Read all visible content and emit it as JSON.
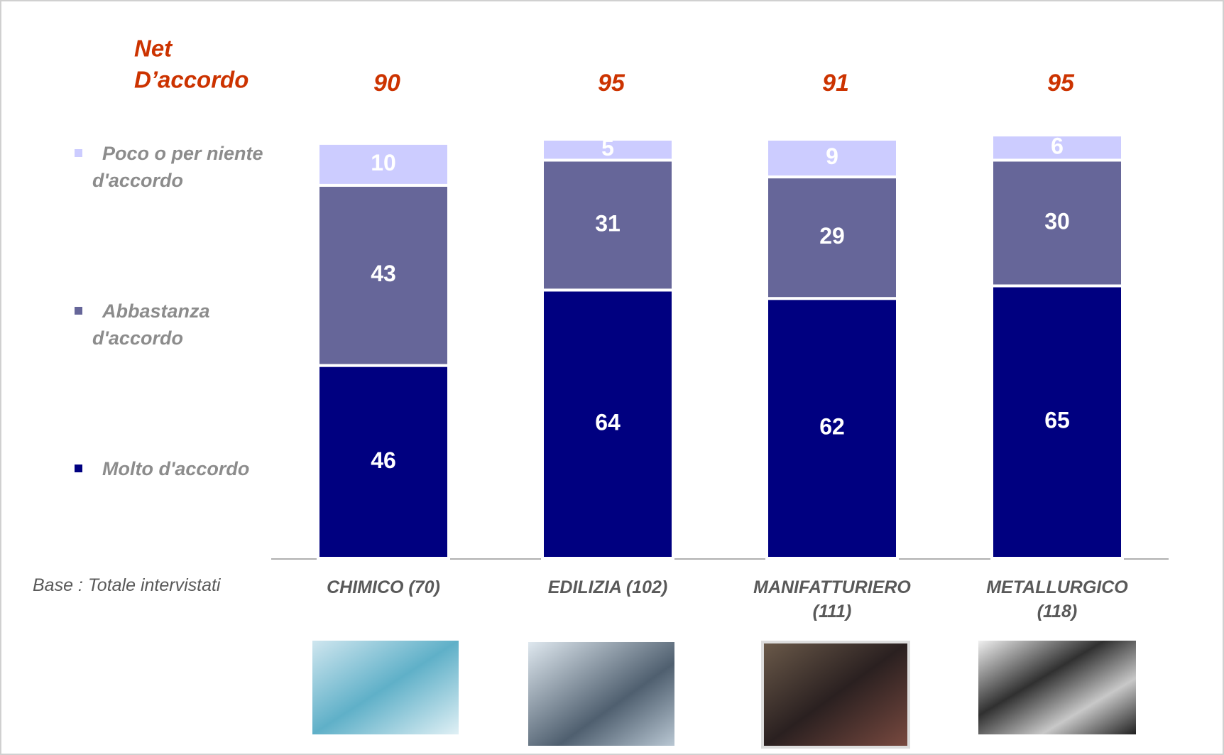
{
  "chart_data": {
    "type": "stacked-bar",
    "net_label": [
      "Net",
      "D’accordo"
    ],
    "net_values": [
      90,
      95,
      91,
      95
    ],
    "base_note": "Base : Totale intervistati",
    "categories": [
      "CHIMICO (70)",
      "EDILIZIA (102)",
      "MANIFATTURIERO (111)",
      "METALLURGICO (118)"
    ],
    "series": [
      {
        "name": "Molto d'accordo",
        "color": "#000080",
        "values": [
          46,
          64,
          62,
          65
        ]
      },
      {
        "name": "Abbastanza d'accordo",
        "color": "#666699",
        "values": [
          43,
          31,
          29,
          30
        ]
      },
      {
        "name": "Poco o per niente d'accordo",
        "color": "#ccccff",
        "values": [
          10,
          5,
          9,
          6
        ]
      }
    ]
  }
}
